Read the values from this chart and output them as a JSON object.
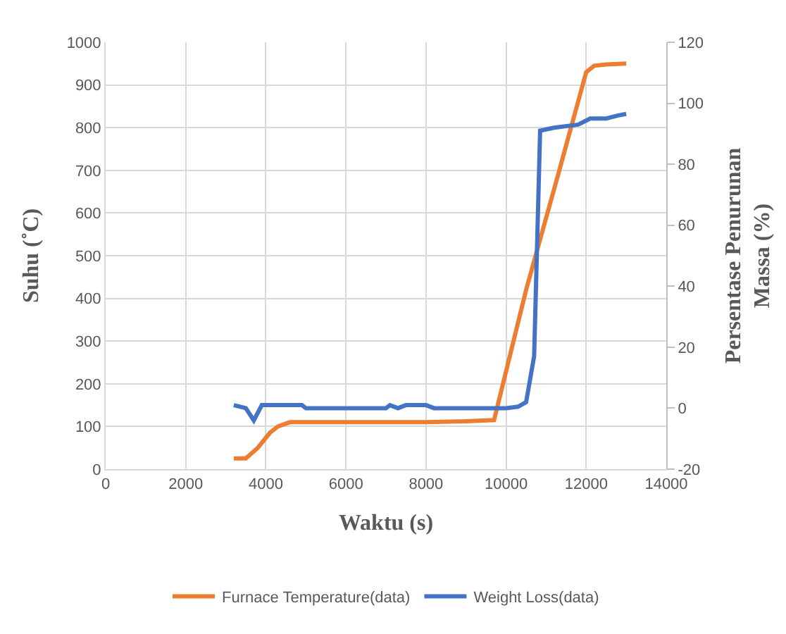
{
  "chart_data": {
    "type": "line",
    "xlabel": "Waktu (s)",
    "ylabel": "Suhu (˚C)",
    "y2label": "Persentase Penurunan Massa (%)",
    "xlim": [
      0,
      14000
    ],
    "xticks": [
      0,
      2000,
      4000,
      6000,
      8000,
      10000,
      12000,
      14000
    ],
    "ylim": [
      0,
      1000
    ],
    "yticks": [
      0,
      100,
      200,
      300,
      400,
      500,
      600,
      700,
      800,
      900,
      1000
    ],
    "y2lim": [
      -20,
      120
    ],
    "y2ticks": [
      -20,
      0,
      20,
      40,
      60,
      80,
      100,
      120
    ],
    "grid": true,
    "legend": "bottom",
    "marker": "none",
    "line_style": "solid",
    "series": [
      {
        "name": "Furnace Temperature(data)",
        "color": "#ed7d31",
        "x": [
          3200,
          3500,
          3800,
          4100,
          4300,
          4600,
          5000,
          8000,
          9000,
          9700,
          10500,
          11300,
          12000,
          12200,
          12500,
          13000
        ],
        "values": [
          25,
          25,
          50,
          85,
          100,
          110,
          110,
          110,
          112,
          115,
          420,
          690,
          930,
          945,
          948,
          950
        ]
      },
      {
        "name": "Weight Loss(data)",
        "color": "#4472c4",
        "axis": "y2",
        "x": [
          3200,
          3500,
          3700,
          3900,
          4900,
          5000,
          7000,
          7100,
          7300,
          7500,
          8000,
          8200,
          10000,
          10300,
          10500,
          10700,
          10850,
          11200,
          11800,
          12100,
          12500,
          12800,
          13000
        ],
        "values": [
          1,
          0,
          -4,
          1,
          1,
          0,
          0,
          1,
          0,
          1,
          1,
          0,
          0,
          0.5,
          2,
          17,
          91,
          92,
          93,
          95,
          95,
          96,
          96.5
        ]
      }
    ]
  }
}
